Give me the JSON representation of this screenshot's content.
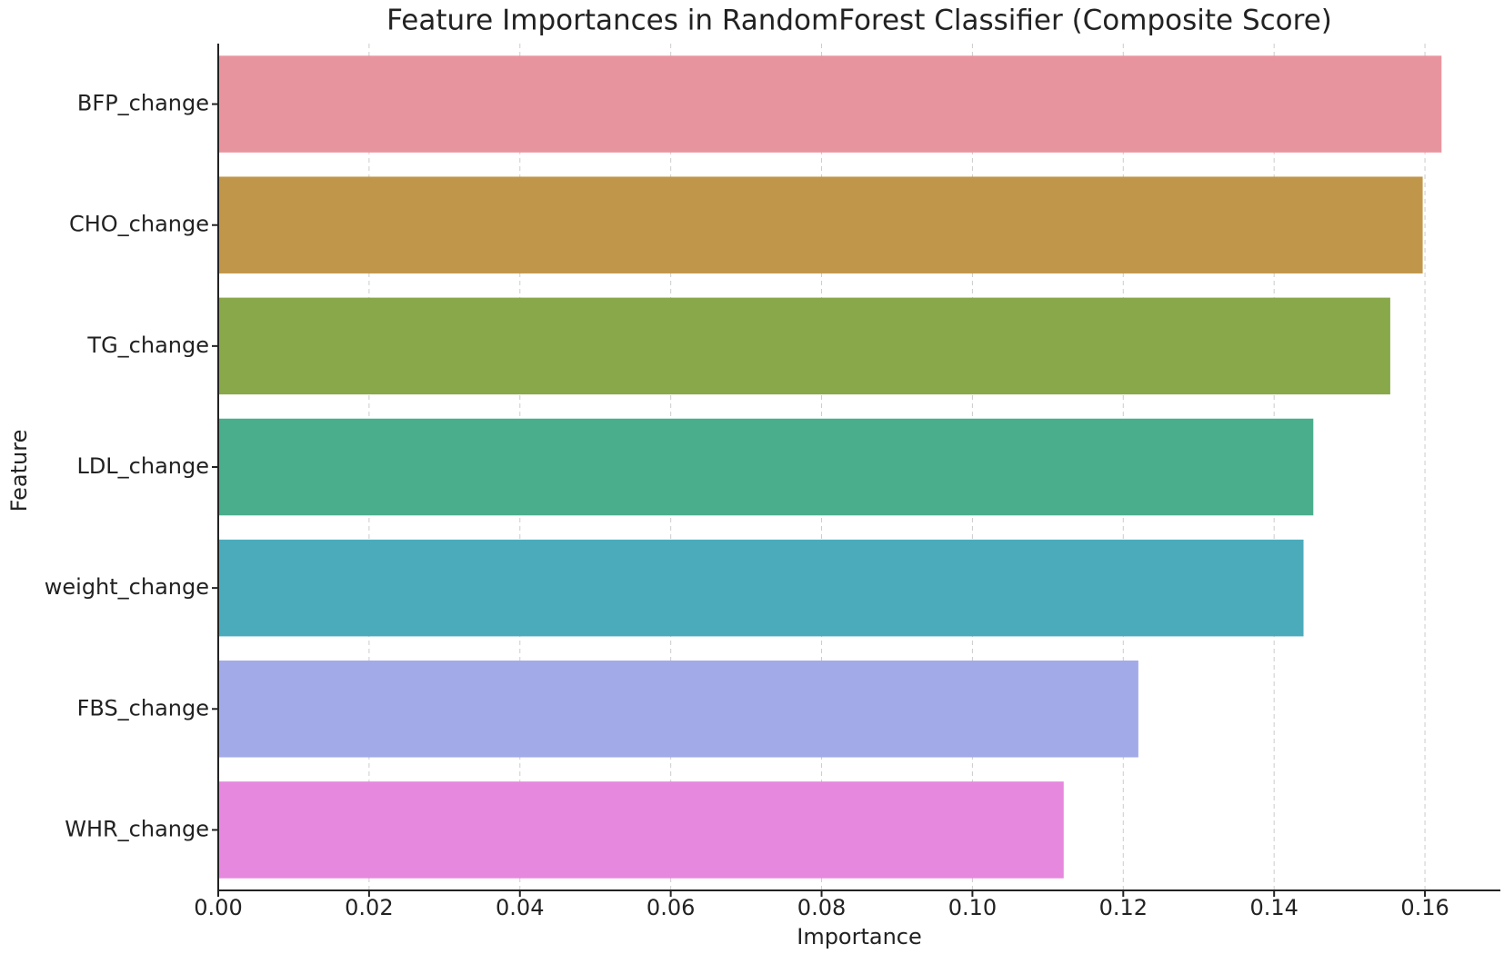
{
  "chart_data": {
    "type": "barh",
    "title": "Feature Importances in RandomForest Classifier (Composite Score)",
    "x_label": "Importance",
    "y_label": "Feature",
    "categories": [
      "BFP_change",
      "CHO_change",
      "TG_change",
      "LDL_change",
      "weight_change",
      "FBS_change",
      "WHR_change"
    ],
    "values": [
      0.1622,
      0.1597,
      0.1554,
      0.1452,
      0.1439,
      0.122,
      0.1121
    ],
    "colors": [
      "#e8949f",
      "#c0974a",
      "#88a84a",
      "#4aad8c",
      "#4cabbb",
      "#a2aae8",
      "#e688de"
    ],
    "xlim": [
      0,
      0.17
    ],
    "xticks": [
      {
        "value": 0,
        "label": "0.00"
      },
      {
        "value": 0.02,
        "label": "0.02"
      },
      {
        "value": 0.04,
        "label": "0.04"
      },
      {
        "value": 0.06,
        "label": "0.06"
      },
      {
        "value": 0.08,
        "label": "0.08"
      },
      {
        "value": 0.1,
        "label": "0.10"
      },
      {
        "value": 0.12,
        "label": "0.12"
      },
      {
        "value": 0.14,
        "label": "0.14"
      },
      {
        "value": 0.16,
        "label": "0.16"
      }
    ],
    "grid": true
  }
}
